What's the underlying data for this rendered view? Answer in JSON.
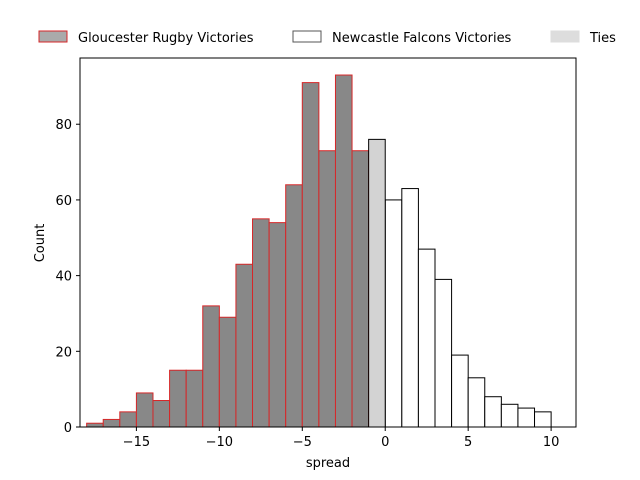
{
  "chart_data": {
    "type": "bar",
    "subtype": "histogram",
    "xlabel": "spread",
    "ylabel": "Count",
    "xlim": [
      -18.4,
      11.5
    ],
    "ylim": [
      0,
      97.5
    ],
    "xticks": [
      -15,
      -10,
      -5,
      0,
      5,
      10
    ],
    "xtick_labels": [
      "−15",
      "−10",
      "−5",
      "0",
      "5",
      "10"
    ],
    "yticks": [
      0,
      20,
      40,
      60,
      80
    ],
    "ytick_labels": [
      "0",
      "20",
      "40",
      "60",
      "80"
    ],
    "bin_width": 1,
    "grid": false,
    "legend_position": "top, above plot, single row",
    "series": [
      {
        "name": "Gloucester Rugby Victories",
        "fill": "#888888",
        "edge": "#d62728",
        "legend_fill": "#aaaaaa",
        "legend_edge": "#d62728",
        "bins": [
          {
            "x": -17.5,
            "y": 1
          },
          {
            "x": -16.5,
            "y": 2
          },
          {
            "x": -15.5,
            "y": 4
          },
          {
            "x": -14.5,
            "y": 9
          },
          {
            "x": -13.5,
            "y": 7
          },
          {
            "x": -12.5,
            "y": 15
          },
          {
            "x": -11.5,
            "y": 15
          },
          {
            "x": -10.5,
            "y": 32
          },
          {
            "x": -9.5,
            "y": 29
          },
          {
            "x": -8.5,
            "y": 43
          },
          {
            "x": -7.5,
            "y": 55
          },
          {
            "x": -6.5,
            "y": 54
          },
          {
            "x": -5.5,
            "y": 64
          },
          {
            "x": -4.5,
            "y": 91
          },
          {
            "x": -3.5,
            "y": 73
          },
          {
            "x": -2.5,
            "y": 93
          },
          {
            "x": -1.5,
            "y": 73
          }
        ]
      },
      {
        "name": "Newcastle Falcons Victories",
        "fill": "#ffffff",
        "edge": "#000000",
        "legend_fill": "#ffffff",
        "legend_edge": "#555555",
        "bins": [
          {
            "x": 0.5,
            "y": 60
          },
          {
            "x": 1.5,
            "y": 63
          },
          {
            "x": 2.5,
            "y": 47
          },
          {
            "x": 3.5,
            "y": 39
          },
          {
            "x": 4.5,
            "y": 19
          },
          {
            "x": 5.5,
            "y": 13
          },
          {
            "x": 6.5,
            "y": 8
          },
          {
            "x": 7.5,
            "y": 6
          },
          {
            "x": 8.5,
            "y": 5
          },
          {
            "x": 9.5,
            "y": 4
          }
        ]
      },
      {
        "name": "Ties",
        "fill": "#d3d3d3",
        "edge": "#000000",
        "legend_fill": "#dddddd",
        "legend_edge": "#dddddd",
        "bins": [
          {
            "x": -0.5,
            "y": 76
          }
        ]
      }
    ]
  }
}
